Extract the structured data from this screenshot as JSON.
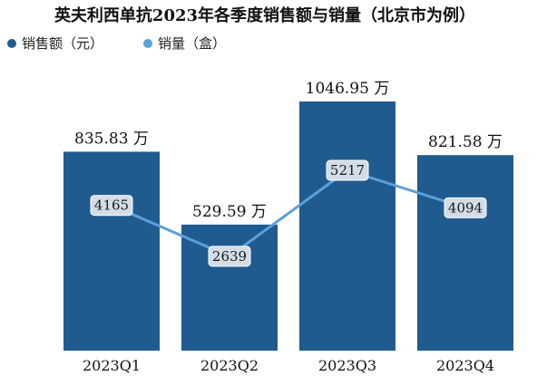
{
  "chart_data": {
    "type": "bar",
    "title": "英夫利西单抗2023年各季度销售额与销量（北京市为例）",
    "categories": [
      "2023Q1",
      "2023Q2",
      "2023Q3",
      "2023Q4"
    ],
    "series": [
      {
        "name": "销售额（元）",
        "type": "bar",
        "values": [
          835.83,
          529.59,
          1046.95,
          821.58
        ],
        "labels": [
          "835.83 万",
          "529.59 万",
          "1046.95 万",
          "821.58 万"
        ],
        "color": "#1f5b8f"
      },
      {
        "name": "销量（盒）",
        "type": "line",
        "values": [
          4165,
          2639,
          5217,
          4094
        ],
        "labels": [
          "4165",
          "2639",
          "5217",
          "4094"
        ],
        "color": "#5aa0dc"
      }
    ],
    "legend_position": "top-left",
    "grid": false
  }
}
